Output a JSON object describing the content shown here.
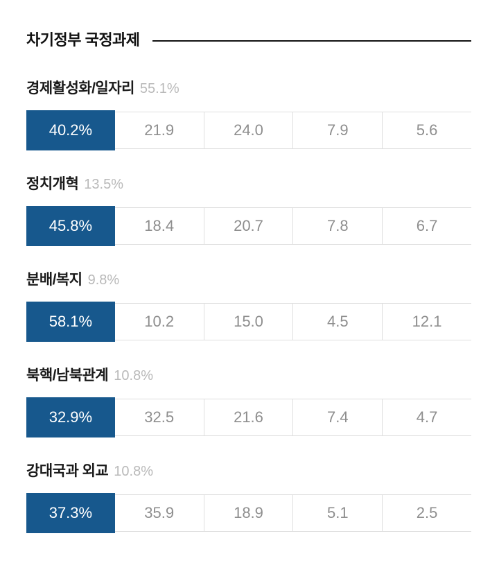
{
  "header": {
    "title": "차기정부 국정과제"
  },
  "colors": {
    "background": "#ffffff",
    "title_text": "#111111",
    "title_rule": "#111111",
    "category_text": "#1a1a1a",
    "share_text": "#b9b9b9",
    "highlight_blue": "#17588d",
    "highlight_text": "#ffffff",
    "cell_text_gray": "#8e8e8e",
    "cell_border_gray": "#dedede"
  },
  "chart_data": {
    "type": "table",
    "title": "차기정부 국정과제",
    "columns": 5,
    "highlight_column_index": 0,
    "rows": [
      {
        "category": "경제활성화/일자리",
        "category_share": "55.1%",
        "category_share_value": 55.1,
        "cells": [
          "40.2%",
          "21.9",
          "24.0",
          "7.9",
          "5.6"
        ],
        "values": [
          40.2,
          21.9,
          24.0,
          7.9,
          5.6
        ]
      },
      {
        "category": "정치개혁",
        "category_share": "13.5%",
        "category_share_value": 13.5,
        "cells": [
          "45.8%",
          "18.4",
          "20.7",
          "7.8",
          "6.7"
        ],
        "values": [
          45.8,
          18.4,
          20.7,
          7.8,
          6.7
        ]
      },
      {
        "category": "분배/복지",
        "category_share": "9.8%",
        "category_share_value": 9.8,
        "cells": [
          "58.1%",
          "10.2",
          "15.0",
          "4.5",
          "12.1"
        ],
        "values": [
          58.1,
          10.2,
          15.0,
          4.5,
          12.1
        ]
      },
      {
        "category": "북핵/남북관계",
        "category_share": "10.8%",
        "category_share_value": 10.8,
        "cells": [
          "32.9%",
          "32.5",
          "21.6",
          "7.4",
          "4.7"
        ],
        "values": [
          32.9,
          32.5,
          21.6,
          7.4,
          4.7
        ]
      },
      {
        "category": "강대국과 외교",
        "category_share": "10.8%",
        "category_share_value": 10.8,
        "cells": [
          "37.3%",
          "35.9",
          "18.9",
          "5.1",
          "2.5"
        ],
        "values": [
          37.3,
          35.9,
          18.9,
          5.1,
          2.5
        ]
      }
    ]
  }
}
